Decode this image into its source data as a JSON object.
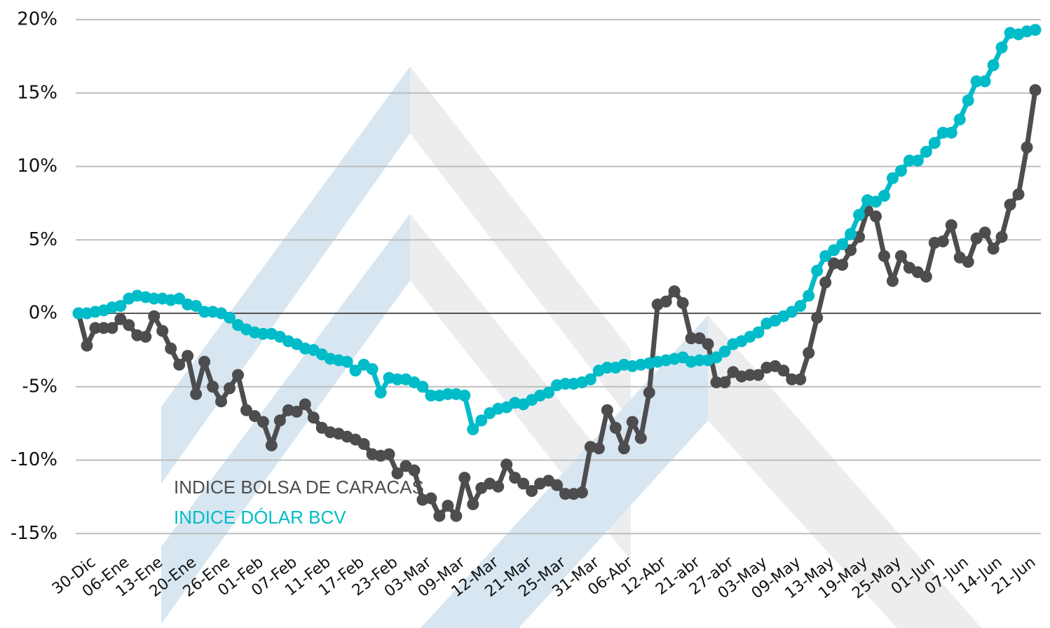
{
  "chart_data": {
    "type": "line",
    "categories": [
      "30-Dic",
      null,
      null,
      null,
      "06-Ene",
      null,
      null,
      null,
      "13-Ene",
      null,
      null,
      null,
      "20-Ene",
      null,
      null,
      null,
      "26-Ene",
      null,
      null,
      null,
      "01-Feb",
      null,
      null,
      null,
      "07-Feb",
      null,
      null,
      null,
      "11-Feb",
      null,
      null,
      null,
      "17-Feb",
      null,
      null,
      null,
      "23-Feb",
      null,
      null,
      null,
      "03-Mar",
      null,
      null,
      null,
      "09-Mar",
      null,
      null,
      null,
      "12-Mar",
      null,
      null,
      null,
      "21-Mar",
      null,
      null,
      null,
      "25-Mar",
      null,
      null,
      null,
      "31-Mar",
      null,
      null,
      null,
      "06-Abr",
      null,
      null,
      null,
      "12-Abr",
      null,
      null,
      null,
      "21-abr",
      null,
      null,
      null,
      "27-abr",
      null,
      null,
      null,
      "03-May",
      null,
      null,
      null,
      "09-May",
      null,
      null,
      null,
      "13-May",
      null,
      null,
      null,
      "19-May",
      null,
      null,
      null,
      "25-May",
      null,
      null,
      null,
      "01-Jun",
      null,
      null,
      null,
      "07-Jun",
      null,
      null,
      null,
      "14-Jun",
      null,
      null,
      null,
      "21-Jun",
      null,
      null
    ],
    "series": [
      {
        "name": "INDICE BOLSA DE CARACAS",
        "color": "#4d4d4f",
        "values": [
          0,
          -2.2,
          -1.0,
          -1.0,
          -1.0,
          -0.4,
          -0.8,
          -1.5,
          -1.6,
          -0.2,
          -1.2,
          -2.4,
          -3.5,
          -2.9,
          -5.5,
          -3.3,
          -5.0,
          -6.0,
          -5.1,
          -4.2,
          -6.6,
          -7.0,
          -7.4,
          -9.0,
          -7.3,
          -6.6,
          -6.7,
          -6.2,
          -7.1,
          -7.8,
          -8.1,
          -8.2,
          -8.4,
          -8.6,
          -8.9,
          -9.6,
          -9.7,
          -9.6,
          -10.9,
          -10.4,
          -10.7,
          -12.7,
          -12.6,
          -13.8,
          -13.1,
          -13.8,
          -11.2,
          -13.0,
          -11.9,
          -11.6,
          -11.8,
          -10.3,
          -11.2,
          -11.6,
          -12.1,
          -11.6,
          -11.4,
          -11.7,
          -12.3,
          -12.3,
          -12.2,
          -9.1,
          -9.2,
          -6.6,
          -7.8,
          -9.2,
          -7.4,
          -8.5,
          -5.4,
          0.6,
          0.8,
          1.5,
          0.7,
          -1.7,
          -1.7,
          -2.1,
          -4.7,
          -4.7,
          -4.0,
          -4.3,
          -4.2,
          -4.2,
          -3.7,
          -3.6,
          -3.9,
          -4.5,
          -4.5,
          -2.7,
          -0.3,
          2.1,
          3.4,
          3.3,
          4.3,
          5.2,
          7.0,
          6.6,
          3.9,
          2.2,
          3.9,
          3.1,
          2.8,
          2.5,
          4.8,
          4.9,
          6.0,
          3.8,
          3.5,
          5.1,
          5.5,
          4.4,
          5.2,
          7.4,
          8.1,
          11.3,
          15.2
        ]
      },
      {
        "name": "INDICE DÓLAR BCV",
        "color": "#00bcc8",
        "values": [
          0,
          0,
          0.1,
          0.2,
          0.4,
          0.5,
          1.0,
          1.2,
          1.1,
          1.0,
          1.0,
          0.9,
          1.0,
          0.6,
          0.5,
          0.1,
          0.1,
          0,
          -0.3,
          -0.8,
          -1.1,
          -1.3,
          -1.4,
          -1.4,
          -1.6,
          -1.9,
          -2.1,
          -2.4,
          -2.5,
          -2.8,
          -3.1,
          -3.2,
          -3.3,
          -3.9,
          -3.5,
          -3.8,
          -5.4,
          -4.4,
          -4.5,
          -4.5,
          -4.7,
          -5.0,
          -5.6,
          -5.6,
          -5.5,
          -5.5,
          -5.6,
          -7.9,
          -7.3,
          -6.8,
          -6.5,
          -6.4,
          -6.1,
          -6.2,
          -5.9,
          -5.6,
          -5.4,
          -4.9,
          -4.8,
          -4.8,
          -4.7,
          -4.5,
          -3.9,
          -3.7,
          -3.7,
          -3.5,
          -3.6,
          -3.5,
          -3.4,
          -3.3,
          -3.2,
          -3.1,
          -3.0,
          -3.3,
          -3.2,
          -3.2,
          -3.0,
          -2.6,
          -2.1,
          -1.9,
          -1.6,
          -1.3,
          -0.7,
          -0.5,
          -0.2,
          0.1,
          0.5,
          1.2,
          2.9,
          3.9,
          4.3,
          4.7,
          5.4,
          6.7,
          7.7,
          7.6,
          8.0,
          9.2,
          9.7,
          10.4,
          10.4,
          11.0,
          11.6,
          12.3,
          12.3,
          13.2,
          14.5,
          15.8,
          15.8,
          16.9,
          18.1,
          19.1,
          19.0,
          19.2,
          19.3
        ]
      }
    ],
    "ylim": [
      -15,
      20
    ],
    "yticks": [
      {
        "value": -15,
        "label": "-15%"
      },
      {
        "value": -10,
        "label": "-10%"
      },
      {
        "value": -5,
        "label": "-5%"
      },
      {
        "value": 0,
        "label": "0%"
      },
      {
        "value": 5,
        "label": "5%"
      },
      {
        "value": 10,
        "label": "10%"
      },
      {
        "value": 15,
        "label": "15%"
      },
      {
        "value": 20,
        "label": "20%"
      }
    ],
    "grid": true
  }
}
